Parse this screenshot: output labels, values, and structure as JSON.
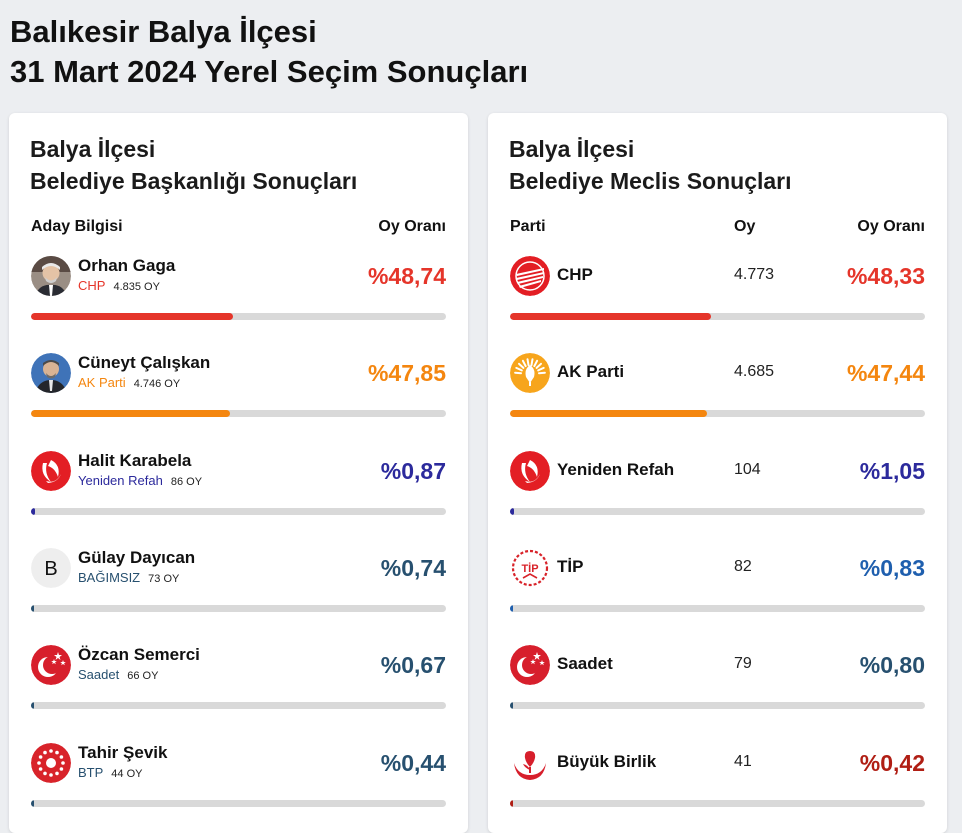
{
  "page": {
    "title_line1": "Balıkesir Balya İlçesi",
    "title_line2": "31 Mart 2024 Yerel Seçim Sonuçları"
  },
  "mayor": {
    "title_line1": "Balya İlçesi",
    "title_line2": "Belediye Başkanlığı Sonuçları",
    "col_candidate": "Aday Bilgisi",
    "col_rate": "Oy Oranı",
    "votes_suffix": "OY",
    "candidates": [
      {
        "name": "Orhan Gaga",
        "party": "CHP",
        "votes": "4.835",
        "rate": "%48,74",
        "pct": 48.74,
        "color": "#e5352a",
        "logo": "photo-orhan-gaga"
      },
      {
        "name": "Cüneyt Çalışkan",
        "party": "AK Parti",
        "votes": "4.746",
        "rate": "%47,85",
        "pct": 47.85,
        "color": "#f4860f",
        "logo": "photo-cuneyt-caliskan"
      },
      {
        "name": "Halit Karabela",
        "party": "Yeniden Refah",
        "votes": "86",
        "rate": "%0,87",
        "pct": 0.87,
        "color": "#2c2a9c",
        "logo": "yeniden-refah-logo"
      },
      {
        "name": "Gülay Dayıcan",
        "party": "BAĞIMSIZ",
        "votes": "73",
        "rate": "%0,74",
        "pct": 0.74,
        "color": "#27506f",
        "logo": "bagimsiz-logo",
        "logo_letter": "B"
      },
      {
        "name": "Özcan Semerci",
        "party": "Saadet",
        "votes": "66",
        "rate": "%0,67",
        "pct": 0.67,
        "color": "#27506f",
        "logo": "saadet-logo"
      },
      {
        "name": "Tahir Şevik",
        "party": "BTP",
        "votes": "44",
        "rate": "%0,44",
        "pct": 0.44,
        "color": "#27506f",
        "logo": "btp-logo"
      }
    ]
  },
  "council": {
    "title_line1": "Balya İlçesi",
    "title_line2": "Belediye Meclis Sonuçları",
    "col_party": "Parti",
    "col_votes": "Oy",
    "col_rate": "Oy Oranı",
    "parties": [
      {
        "name": "CHP",
        "votes": "4.773",
        "rate": "%48,33",
        "pct": 48.33,
        "color": "#e5352a",
        "logo": "chp-logo"
      },
      {
        "name": "AK Parti",
        "votes": "4.685",
        "rate": "%47,44",
        "pct": 47.44,
        "color": "#f4860f",
        "logo": "ak-parti-logo"
      },
      {
        "name": "Yeniden Refah",
        "votes": "104",
        "rate": "%1,05",
        "pct": 1.05,
        "color": "#2c2a9c",
        "logo": "yeniden-refah-logo"
      },
      {
        "name": "TİP",
        "votes": "82",
        "rate": "%0,83",
        "pct": 0.83,
        "color": "#1f5fae",
        "logo": "tip-logo",
        "logo_text": "TİP"
      },
      {
        "name": "Saadet",
        "votes": "79",
        "rate": "%0,80",
        "pct": 0.8,
        "color": "#27506f",
        "logo": "saadet-logo"
      },
      {
        "name": "Büyük Birlik",
        "votes": "41",
        "rate": "%0,42",
        "pct": 0.42,
        "color": "#b01e14",
        "logo": "buyuk-birlik-logo"
      }
    ]
  }
}
